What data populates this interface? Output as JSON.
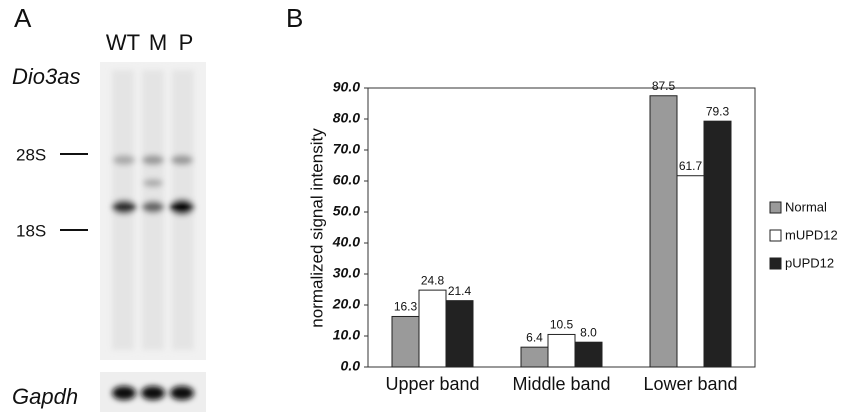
{
  "panel_a": {
    "label": "A",
    "lanes": [
      "WT",
      "M",
      "P"
    ],
    "probe": "Dio3as",
    "markers": [
      "28S",
      "18S"
    ],
    "control": "Gapdh"
  },
  "chart_data": {
    "type": "bar",
    "panel_label": "B",
    "ylabel": "normalized signal intensity",
    "categories": [
      "Upper band",
      "Middle band",
      "Lower band"
    ],
    "series": [
      {
        "name": "Normal",
        "color": "#9a9a9a",
        "values": [
          16.3,
          6.4,
          87.5
        ],
        "value_labels": [
          "16.3",
          "6.4",
          "87.5"
        ]
      },
      {
        "name": "mUPD12",
        "color": "#ffffff",
        "values": [
          24.8,
          10.5,
          61.7
        ],
        "value_labels": [
          "24.8",
          "10.5",
          "61.7"
        ]
      },
      {
        "name": "pUPD12",
        "color": "#222222",
        "values": [
          21.4,
          8,
          79.3
        ],
        "value_labels": [
          "21.4",
          "8.0",
          "79.3"
        ]
      }
    ],
    "ylim": [
      0,
      90
    ],
    "yticks": [
      {
        "value": 0,
        "label": "0.0"
      },
      {
        "value": 10,
        "label": "10.0"
      },
      {
        "value": 20,
        "label": "20.0"
      },
      {
        "value": 30,
        "label": "30.0"
      },
      {
        "value": 40,
        "label": "40.0"
      },
      {
        "value": 50,
        "label": "50.0"
      },
      {
        "value": 60,
        "label": "60.0"
      },
      {
        "value": 70,
        "label": "70.0"
      },
      {
        "value": 80,
        "label": "80.0"
      },
      {
        "value": 90,
        "label": "90.0"
      }
    ],
    "grid": false,
    "legend": "right"
  }
}
